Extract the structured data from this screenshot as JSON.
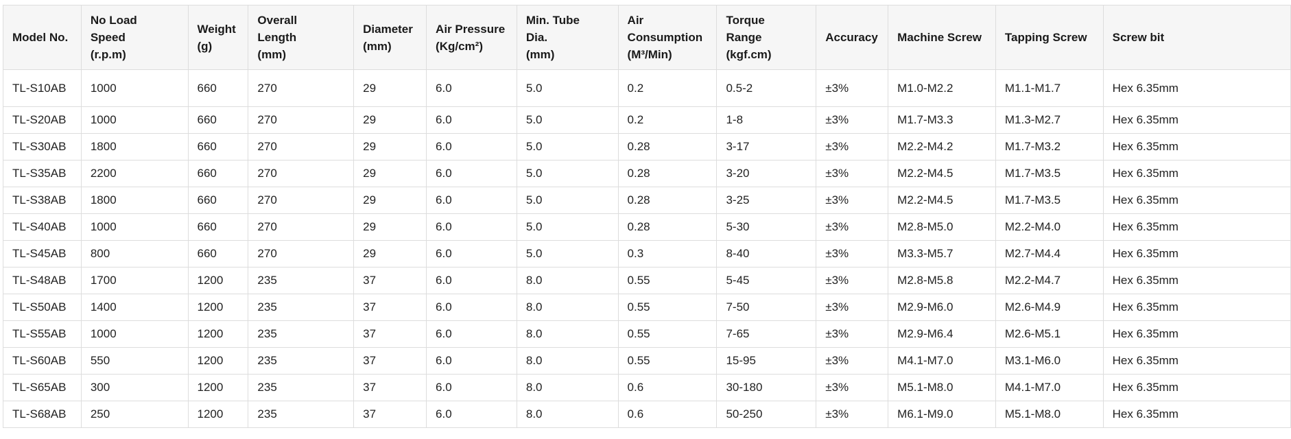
{
  "columns": [
    {
      "key": "model",
      "lines": [
        "Model No."
      ]
    },
    {
      "key": "speed",
      "lines": [
        "No Load",
        "Speed",
        "(r.p.m)"
      ]
    },
    {
      "key": "weight",
      "lines": [
        "Weight",
        "(g)"
      ]
    },
    {
      "key": "length",
      "lines": [
        "Overall",
        "Length",
        "(mm)"
      ]
    },
    {
      "key": "diameter",
      "lines": [
        "Diameter",
        "(mm)"
      ]
    },
    {
      "key": "pressure",
      "lines": [
        "Air Pressure",
        "(Kg/cm²)"
      ]
    },
    {
      "key": "tube",
      "lines": [
        "Min. Tube",
        "Dia.",
        "(mm)"
      ]
    },
    {
      "key": "consumption",
      "lines": [
        "Air",
        "Consumption",
        "(M³/Min)"
      ]
    },
    {
      "key": "torque",
      "lines": [
        "Torque",
        "Range",
        "(kgf.cm)"
      ]
    },
    {
      "key": "accuracy",
      "lines": [
        "Accuracy"
      ]
    },
    {
      "key": "machine_screw",
      "lines": [
        "Machine Screw"
      ]
    },
    {
      "key": "tapping_screw",
      "lines": [
        "Tapping Screw"
      ]
    },
    {
      "key": "screw_bit",
      "lines": [
        "Screw bit"
      ]
    }
  ],
  "rows": [
    [
      "TL-S10AB",
      "1000",
      "660",
      "270",
      "29",
      "6.0",
      "5.0",
      "0.2",
      "0.5-2",
      "±3%",
      "M1.0-M2.2",
      "M1.1-M1.7",
      "Hex 6.35mm"
    ],
    [
      "TL-S20AB",
      "1000",
      "660",
      "270",
      "29",
      "6.0",
      "5.0",
      "0.2",
      "1-8",
      "±3%",
      "M1.7-M3.3",
      "M1.3-M2.7",
      "Hex 6.35mm"
    ],
    [
      "TL-S30AB",
      "1800",
      "660",
      "270",
      "29",
      "6.0",
      "5.0",
      "0.28",
      "3-17",
      "±3%",
      "M2.2-M4.2",
      "M1.7-M3.2",
      "Hex 6.35mm"
    ],
    [
      "TL-S35AB",
      "2200",
      "660",
      "270",
      "29",
      "6.0",
      "5.0",
      "0.28",
      "3-20",
      "±3%",
      "M2.2-M4.5",
      "M1.7-M3.5",
      "Hex 6.35mm"
    ],
    [
      "TL-S38AB",
      "1800",
      "660",
      "270",
      "29",
      "6.0",
      "5.0",
      "0.28",
      "3-25",
      "±3%",
      "M2.2-M4.5",
      "M1.7-M3.5",
      "Hex 6.35mm"
    ],
    [
      "TL-S40AB",
      "1000",
      "660",
      "270",
      "29",
      "6.0",
      "5.0",
      "0.28",
      "5-30",
      "±3%",
      "M2.8-M5.0",
      "M2.2-M4.0",
      "Hex 6.35mm"
    ],
    [
      "TL-S45AB",
      "800",
      "660",
      "270",
      "29",
      "6.0",
      "5.0",
      "0.3",
      "8-40",
      "±3%",
      "M3.3-M5.7",
      "M2.7-M4.4",
      "Hex 6.35mm"
    ],
    [
      "TL-S48AB",
      "1700",
      "1200",
      "235",
      "37",
      "6.0",
      "8.0",
      "0.55",
      "5-45",
      "±3%",
      "M2.8-M5.8",
      "M2.2-M4.7",
      "Hex 6.35mm"
    ],
    [
      "TL-S50AB",
      "1400",
      "1200",
      "235",
      "37",
      "6.0",
      "8.0",
      "0.55",
      "7-50",
      "±3%",
      "M2.9-M6.0",
      "M2.6-M4.9",
      "Hex 6.35mm"
    ],
    [
      "TL-S55AB",
      "1000",
      "1200",
      "235",
      "37",
      "6.0",
      "8.0",
      "0.55",
      "7-65",
      "±3%",
      "M2.9-M6.4",
      "M2.6-M5.1",
      "Hex 6.35mm"
    ],
    [
      "TL-S60AB",
      "550",
      "1200",
      "235",
      "37",
      "6.0",
      "8.0",
      "0.55",
      "15-95",
      "±3%",
      "M4.1-M7.0",
      "M3.1-M6.0",
      "Hex 6.35mm"
    ],
    [
      "TL-S65AB",
      "300",
      "1200",
      "235",
      "37",
      "6.0",
      "8.0",
      "0.6",
      "30-180",
      "±3%",
      "M5.1-M8.0",
      "M4.1-M7.0",
      "Hex 6.35mm"
    ],
    [
      "TL-S68AB",
      "250",
      "1200",
      "235",
      "37",
      "6.0",
      "8.0",
      "0.6",
      "50-250",
      "±3%",
      "M6.1-M9.0",
      "M5.1-M8.0",
      "Hex 6.35mm"
    ]
  ]
}
